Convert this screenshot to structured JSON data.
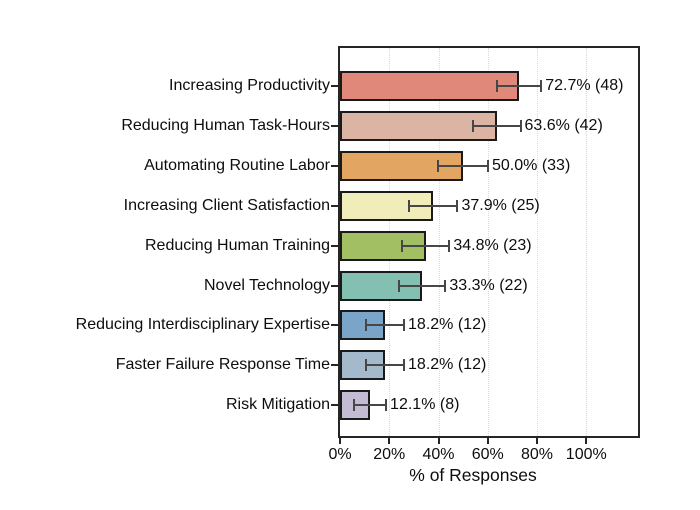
{
  "chart_data": {
    "type": "bar",
    "orientation": "horizontal",
    "title": "",
    "xlabel": "% of Responses",
    "ylabel": "",
    "xlim": [
      0,
      121
    ],
    "grid": "vertical-dotted",
    "legend": "none",
    "x_ticks": [
      {
        "value": 0,
        "label": "0%"
      },
      {
        "value": 20,
        "label": "20%"
      },
      {
        "value": 40,
        "label": "40%"
      },
      {
        "value": 60,
        "label": "60%"
      },
      {
        "value": 80,
        "label": "80%"
      },
      {
        "value": 100,
        "label": "100%"
      }
    ],
    "categories": [
      "Increasing Productivity",
      "Reducing Human Task-Hours",
      "Automating Routine Labor",
      "Increasing Client Satisfaction",
      "Reducing Human Training",
      "Novel Technology",
      "Reducing Interdisciplinary Expertise",
      "Faster Failure Response Time",
      "Risk Mitigation"
    ],
    "values": [
      72.7,
      63.6,
      50.0,
      37.9,
      34.8,
      33.3,
      18.2,
      18.2,
      12.1
    ],
    "counts": [
      48,
      42,
      33,
      25,
      23,
      22,
      12,
      12,
      8
    ],
    "errors": [
      9.0,
      9.7,
      10.1,
      9.8,
      9.6,
      9.5,
      7.8,
      7.8,
      6.6
    ],
    "value_labels": [
      "72.7% (48)",
      "63.6% (42)",
      "50.0% (33)",
      "37.9% (25)",
      "34.8% (23)",
      "33.3% (22)",
      "18.2% (12)",
      "18.2% (12)",
      "12.1% (8)"
    ],
    "bar_colors": [
      "#e08879",
      "#dcb4a3",
      "#e3a562",
      "#f0edba",
      "#a3bf63",
      "#84c0b1",
      "#7ba4c9",
      "#a5b9cc",
      "#c2bbd3"
    ],
    "bar_border_color": "#1a1a1a",
    "error_bar_color": "#474747",
    "axis_color": "#262626",
    "gridline_color": "#d9d9d9",
    "background_color": "#ffffff"
  }
}
